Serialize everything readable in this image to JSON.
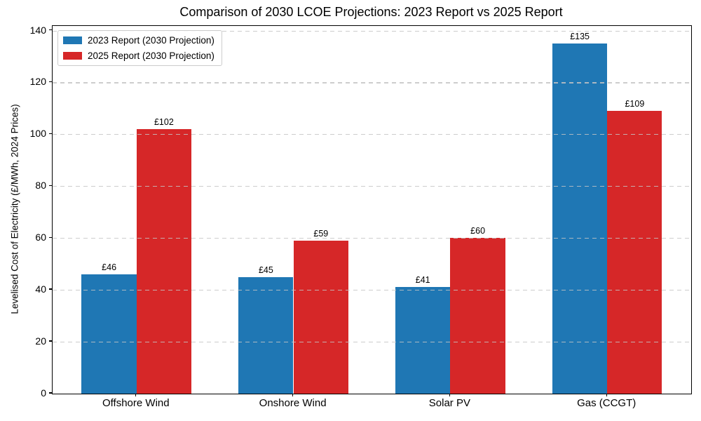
{
  "chart_data": {
    "type": "bar",
    "title": "Comparison of 2030 LCOE Projections: 2023 Report vs 2025 Report",
    "xlabel": "",
    "ylabel": "Levelised Cost of Electricity (£/MWh, 2024 Prices)",
    "categories": [
      "Offshore Wind",
      "Onshore Wind",
      "Solar PV",
      "Gas (CCGT)"
    ],
    "series": [
      {
        "name": "2023 Report (2030 Projection)",
        "color": "#1f77b4",
        "values": [
          46,
          45,
          41,
          135
        ],
        "labels": [
          "£46",
          "£45",
          "£41",
          "£135"
        ]
      },
      {
        "name": "2025 Report (2030 Projection)",
        "color": "#d62728",
        "values": [
          102,
          59,
          60,
          109
        ],
        "labels": [
          "£102",
          "£59",
          "£60",
          "£109"
        ]
      }
    ],
    "ylim": [
      0,
      141.75
    ],
    "yticks": [
      0,
      20,
      40,
      60,
      80,
      100,
      120,
      140
    ],
    "grid": "horizontal dashed, drawn above bars",
    "legend_position": "upper left",
    "bar_group_width": 0.7
  }
}
